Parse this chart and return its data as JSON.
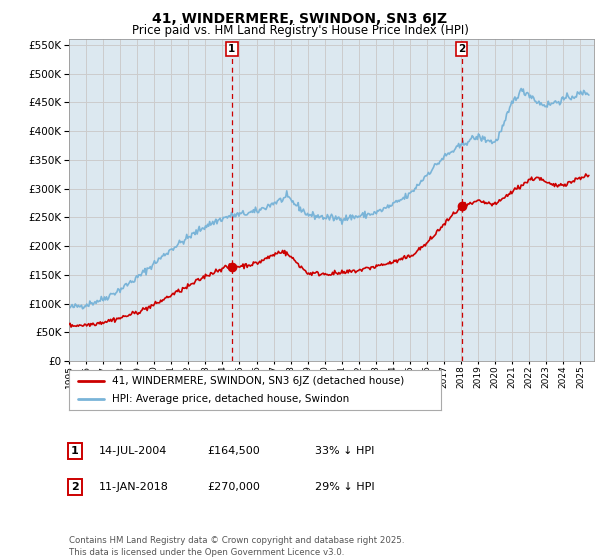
{
  "title": "41, WINDERMERE, SWINDON, SN3 6JZ",
  "subtitle": "Price paid vs. HM Land Registry's House Price Index (HPI)",
  "legend_label_red": "41, WINDERMERE, SWINDON, SN3 6JZ (detached house)",
  "legend_label_blue": "HPI: Average price, detached house, Swindon",
  "footer": "Contains HM Land Registry data © Crown copyright and database right 2025.\nThis data is licensed under the Open Government Licence v3.0.",
  "sale1_date": "14-JUL-2004",
  "sale1_price": "£164,500",
  "sale1_label": "1",
  "sale1_note": "33% ↓ HPI",
  "sale2_date": "11-JAN-2018",
  "sale2_price": "£270,000",
  "sale2_label": "2",
  "sale2_note": "29% ↓ HPI",
  "hpi_color": "#7ab4d8",
  "price_color": "#cc0000",
  "vline_color": "#cc0000",
  "grid_color": "#cccccc",
  "bg_color": "#ffffff",
  "plot_bg_color": "#dce8f0",
  "ylim": [
    0,
    560000
  ],
  "yticks": [
    0,
    50000,
    100000,
    150000,
    200000,
    250000,
    300000,
    350000,
    400000,
    450000,
    500000,
    550000
  ],
  "sale1_x": 2004.54,
  "sale2_x": 2018.03,
  "hpi_keypoints_x": [
    1995,
    1996,
    1997,
    1998,
    1999,
    2000,
    2001,
    2002,
    2003,
    2004,
    2004.5,
    2005,
    2006,
    2007,
    2007.8,
    2008,
    2009,
    2010,
    2011,
    2012,
    2013,
    2014,
    2015,
    2016,
    2017,
    2018,
    2018.5,
    2019,
    2020,
    2020.5,
    2021,
    2021.5,
    2022,
    2022.5,
    2023,
    2023.5,
    2024,
    2024.5,
    2025,
    2025.3
  ],
  "hpi_keypoints_y": [
    93000,
    98000,
    108000,
    125000,
    145000,
    170000,
    195000,
    215000,
    235000,
    248000,
    253000,
    255000,
    260000,
    275000,
    285000,
    280000,
    255000,
    250000,
    248000,
    252000,
    258000,
    272000,
    290000,
    325000,
    355000,
    375000,
    385000,
    390000,
    380000,
    410000,
    450000,
    470000,
    465000,
    450000,
    445000,
    450000,
    455000,
    460000,
    465000,
    467000
  ],
  "price_keypoints_x": [
    1995,
    1996,
    1997,
    1998,
    1999,
    2000,
    2001,
    2002,
    2003,
    2004,
    2004.54,
    2005,
    2006,
    2007,
    2007.5,
    2008,
    2009,
    2010,
    2011,
    2012,
    2013,
    2014,
    2015,
    2016,
    2017,
    2018.03,
    2018.5,
    2019,
    2020,
    2021,
    2022,
    2022.5,
    2023,
    2023.5,
    2024,
    2024.5,
    2025,
    2025.3
  ],
  "price_keypoints_y": [
    62000,
    63000,
    68000,
    75000,
    85000,
    98000,
    115000,
    130000,
    148000,
    162000,
    164500,
    165000,
    170000,
    185000,
    192000,
    182000,
    153000,
    152000,
    153000,
    158000,
    165000,
    172000,
    182000,
    205000,
    238000,
    270000,
    272000,
    278000,
    272000,
    295000,
    315000,
    320000,
    310000,
    305000,
    308000,
    312000,
    320000,
    322000
  ]
}
